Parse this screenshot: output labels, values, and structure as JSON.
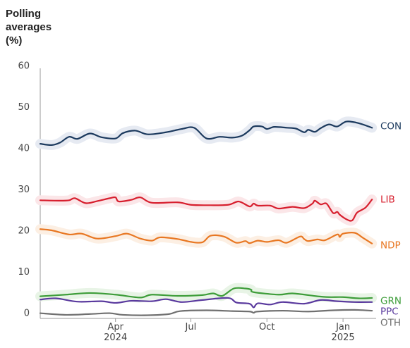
{
  "chart_data": {
    "type": "line",
    "title": "",
    "ylabel": "Polling\naverages\n(%)",
    "xlabel": "",
    "ylim": [
      0,
      60
    ],
    "yticks": [
      0,
      10,
      20,
      30,
      40,
      50,
      60
    ],
    "xlim": [
      "2024-01-01",
      "2025-02-10"
    ],
    "xticks": [
      {
        "date": "2024-04-01",
        "label": "Apr",
        "sublabel": "2024"
      },
      {
        "date": "2024-07-01",
        "label": "Jul",
        "sublabel": ""
      },
      {
        "date": "2024-10-01",
        "label": "Oct",
        "sublabel": ""
      },
      {
        "date": "2025-01-01",
        "label": "Jan",
        "sublabel": "2025"
      }
    ],
    "grid": false,
    "series": [
      {
        "name": "CON",
        "color": "#1c3a5e",
        "band": true,
        "band_color": "#e6eaf2",
        "points": [
          [
            "2024-01-01",
            41.0
          ],
          [
            "2024-01-15",
            40.7
          ],
          [
            "2024-01-25",
            41.3
          ],
          [
            "2024-02-05",
            42.7
          ],
          [
            "2024-02-15",
            42.2
          ],
          [
            "2024-03-01",
            43.5
          ],
          [
            "2024-03-15",
            42.6
          ],
          [
            "2024-04-01",
            42.3
          ],
          [
            "2024-04-10",
            43.6
          ],
          [
            "2024-04-25",
            44.2
          ],
          [
            "2024-05-10",
            43.3
          ],
          [
            "2024-06-01",
            43.8
          ],
          [
            "2024-06-20",
            44.6
          ],
          [
            "2024-07-05",
            44.9
          ],
          [
            "2024-07-20",
            42.3
          ],
          [
            "2024-08-05",
            42.7
          ],
          [
            "2024-08-20",
            42.5
          ],
          [
            "2024-09-01",
            43.0
          ],
          [
            "2024-09-10",
            44.3
          ],
          [
            "2024-09-15",
            45.2
          ],
          [
            "2024-09-25",
            45.2
          ],
          [
            "2024-10-01",
            44.6
          ],
          [
            "2024-10-10",
            45.1
          ],
          [
            "2024-10-25",
            44.9
          ],
          [
            "2024-11-05",
            44.7
          ],
          [
            "2024-11-15",
            43.8
          ],
          [
            "2024-11-20",
            44.4
          ],
          [
            "2024-11-28",
            43.9
          ],
          [
            "2024-12-05",
            44.8
          ],
          [
            "2024-12-15",
            45.7
          ],
          [
            "2024-12-25",
            45.2
          ],
          [
            "2025-01-05",
            46.4
          ],
          [
            "2025-01-20",
            46.0
          ],
          [
            "2025-02-05",
            44.9
          ]
        ]
      },
      {
        "name": "LIB",
        "color": "#d71f2e",
        "band": true,
        "band_color": "#fbe6e8",
        "points": [
          [
            "2024-01-01",
            27.3
          ],
          [
            "2024-01-25",
            27.2
          ],
          [
            "2024-02-05",
            27.3
          ],
          [
            "2024-02-12",
            27.8
          ],
          [
            "2024-02-25",
            26.6
          ],
          [
            "2024-03-10",
            27.1
          ],
          [
            "2024-03-25",
            27.8
          ],
          [
            "2024-04-01",
            28.0
          ],
          [
            "2024-04-05",
            27.0
          ],
          [
            "2024-04-20",
            27.4
          ],
          [
            "2024-05-01",
            28.0
          ],
          [
            "2024-05-15",
            26.7
          ],
          [
            "2024-06-15",
            26.8
          ],
          [
            "2024-07-01",
            26.2
          ],
          [
            "2024-07-20",
            26.1
          ],
          [
            "2024-08-15",
            26.2
          ],
          [
            "2024-08-28",
            27.0
          ],
          [
            "2024-09-10",
            25.8
          ],
          [
            "2024-09-15",
            26.5
          ],
          [
            "2024-09-20",
            26.0
          ],
          [
            "2024-10-05",
            26.0
          ],
          [
            "2024-10-15",
            25.3
          ],
          [
            "2024-11-01",
            25.7
          ],
          [
            "2024-11-15",
            25.4
          ],
          [
            "2024-11-25",
            26.5
          ],
          [
            "2024-11-28",
            27.2
          ],
          [
            "2024-12-05",
            26.3
          ],
          [
            "2024-12-12",
            26.5
          ],
          [
            "2024-12-20",
            24.2
          ],
          [
            "2024-12-25",
            24.5
          ],
          [
            "2024-12-28",
            23.8
          ],
          [
            "2025-01-05",
            22.7
          ],
          [
            "2025-01-12",
            22.4
          ],
          [
            "2025-01-18",
            24.3
          ],
          [
            "2025-01-28",
            25.5
          ],
          [
            "2025-02-05",
            27.5
          ]
        ]
      },
      {
        "name": "NDP",
        "color": "#e87722",
        "band": true,
        "band_color": "#fcefe3",
        "points": [
          [
            "2024-01-01",
            20.3
          ],
          [
            "2024-01-15",
            20.0
          ],
          [
            "2024-02-05",
            19.0
          ],
          [
            "2024-02-20",
            19.2
          ],
          [
            "2024-03-10",
            18.0
          ],
          [
            "2024-04-01",
            18.6
          ],
          [
            "2024-04-15",
            19.2
          ],
          [
            "2024-05-01",
            18.0
          ],
          [
            "2024-05-15",
            17.5
          ],
          [
            "2024-05-25",
            18.3
          ],
          [
            "2024-06-15",
            17.9
          ],
          [
            "2024-07-01",
            17.2
          ],
          [
            "2024-07-15",
            17.1
          ],
          [
            "2024-07-25",
            18.7
          ],
          [
            "2024-08-10",
            18.5
          ],
          [
            "2024-08-25",
            17.0
          ],
          [
            "2024-09-05",
            17.4
          ],
          [
            "2024-09-10",
            16.9
          ],
          [
            "2024-09-20",
            17.5
          ],
          [
            "2024-10-01",
            17.2
          ],
          [
            "2024-10-15",
            17.6
          ],
          [
            "2024-10-25",
            17.0
          ],
          [
            "2024-11-10",
            18.5
          ],
          [
            "2024-11-15",
            17.9
          ],
          [
            "2024-11-20",
            17.4
          ],
          [
            "2024-12-01",
            17.8
          ],
          [
            "2024-12-10",
            17.6
          ],
          [
            "2024-12-25",
            19.0
          ],
          [
            "2024-12-28",
            18.4
          ],
          [
            "2025-01-01",
            19.2
          ],
          [
            "2025-01-15",
            19.4
          ],
          [
            "2025-01-25",
            18.2
          ],
          [
            "2025-02-05",
            16.8
          ]
        ]
      },
      {
        "name": "GRN",
        "color": "#3e9d3a",
        "band": true,
        "band_color": "#e8f4e6",
        "points": [
          [
            "2024-01-01",
            4.0
          ],
          [
            "2024-02-01",
            4.4
          ],
          [
            "2024-03-01",
            4.8
          ],
          [
            "2024-04-01",
            4.4
          ],
          [
            "2024-05-01",
            3.7
          ],
          [
            "2024-05-15",
            4.4
          ],
          [
            "2024-06-15",
            4.1
          ],
          [
            "2024-07-15",
            4.3
          ],
          [
            "2024-07-28",
            4.7
          ],
          [
            "2024-08-08",
            4.1
          ],
          [
            "2024-08-22",
            5.9
          ],
          [
            "2024-09-05",
            5.9
          ],
          [
            "2024-09-12",
            5.6
          ],
          [
            "2024-09-15",
            5.0
          ],
          [
            "2024-10-15",
            4.4
          ],
          [
            "2024-11-01",
            4.7
          ],
          [
            "2024-12-01",
            4.0
          ],
          [
            "2024-12-15",
            3.8
          ],
          [
            "2025-01-01",
            3.8
          ],
          [
            "2025-01-20",
            3.5
          ],
          [
            "2025-02-05",
            3.6
          ]
        ]
      },
      {
        "name": "PPC",
        "color": "#5a3a9e",
        "band": false,
        "band_color": "",
        "points": [
          [
            "2024-01-01",
            3.2
          ],
          [
            "2024-01-20",
            3.5
          ],
          [
            "2024-02-15",
            2.7
          ],
          [
            "2024-03-15",
            2.8
          ],
          [
            "2024-04-01",
            2.4
          ],
          [
            "2024-04-20",
            2.9
          ],
          [
            "2024-05-15",
            2.8
          ],
          [
            "2024-06-01",
            3.3
          ],
          [
            "2024-06-20",
            2.6
          ],
          [
            "2024-07-15",
            3.1
          ],
          [
            "2024-08-15",
            3.6
          ],
          [
            "2024-08-25",
            2.5
          ],
          [
            "2024-09-10",
            2.2
          ],
          [
            "2024-09-15",
            1.3
          ],
          [
            "2024-09-20",
            2.3
          ],
          [
            "2024-10-05",
            2.0
          ],
          [
            "2024-10-20",
            2.6
          ],
          [
            "2024-11-15",
            2.2
          ],
          [
            "2024-12-05",
            3.1
          ],
          [
            "2024-12-25",
            2.8
          ],
          [
            "2025-01-15",
            2.6
          ],
          [
            "2025-02-05",
            2.6
          ]
        ]
      },
      {
        "name": "OTH",
        "color": "#707070",
        "band": false,
        "band_color": "",
        "points": [
          [
            "2024-01-01",
            -0.1
          ],
          [
            "2024-02-01",
            -0.5
          ],
          [
            "2024-03-01",
            -0.3
          ],
          [
            "2024-03-25",
            -0.1
          ],
          [
            "2024-04-10",
            -0.5
          ],
          [
            "2024-05-10",
            -0.6
          ],
          [
            "2024-06-05",
            -0.3
          ],
          [
            "2024-06-18",
            0.4
          ],
          [
            "2024-07-20",
            0.6
          ],
          [
            "2024-08-20",
            0.4
          ],
          [
            "2024-09-10",
            0.3
          ],
          [
            "2024-09-15",
            0.0
          ],
          [
            "2024-09-20",
            0.3
          ],
          [
            "2024-10-20",
            0.5
          ],
          [
            "2024-11-20",
            0.3
          ],
          [
            "2024-12-20",
            0.6
          ],
          [
            "2025-01-15",
            0.7
          ],
          [
            "2025-02-05",
            0.5
          ]
        ]
      }
    ]
  }
}
